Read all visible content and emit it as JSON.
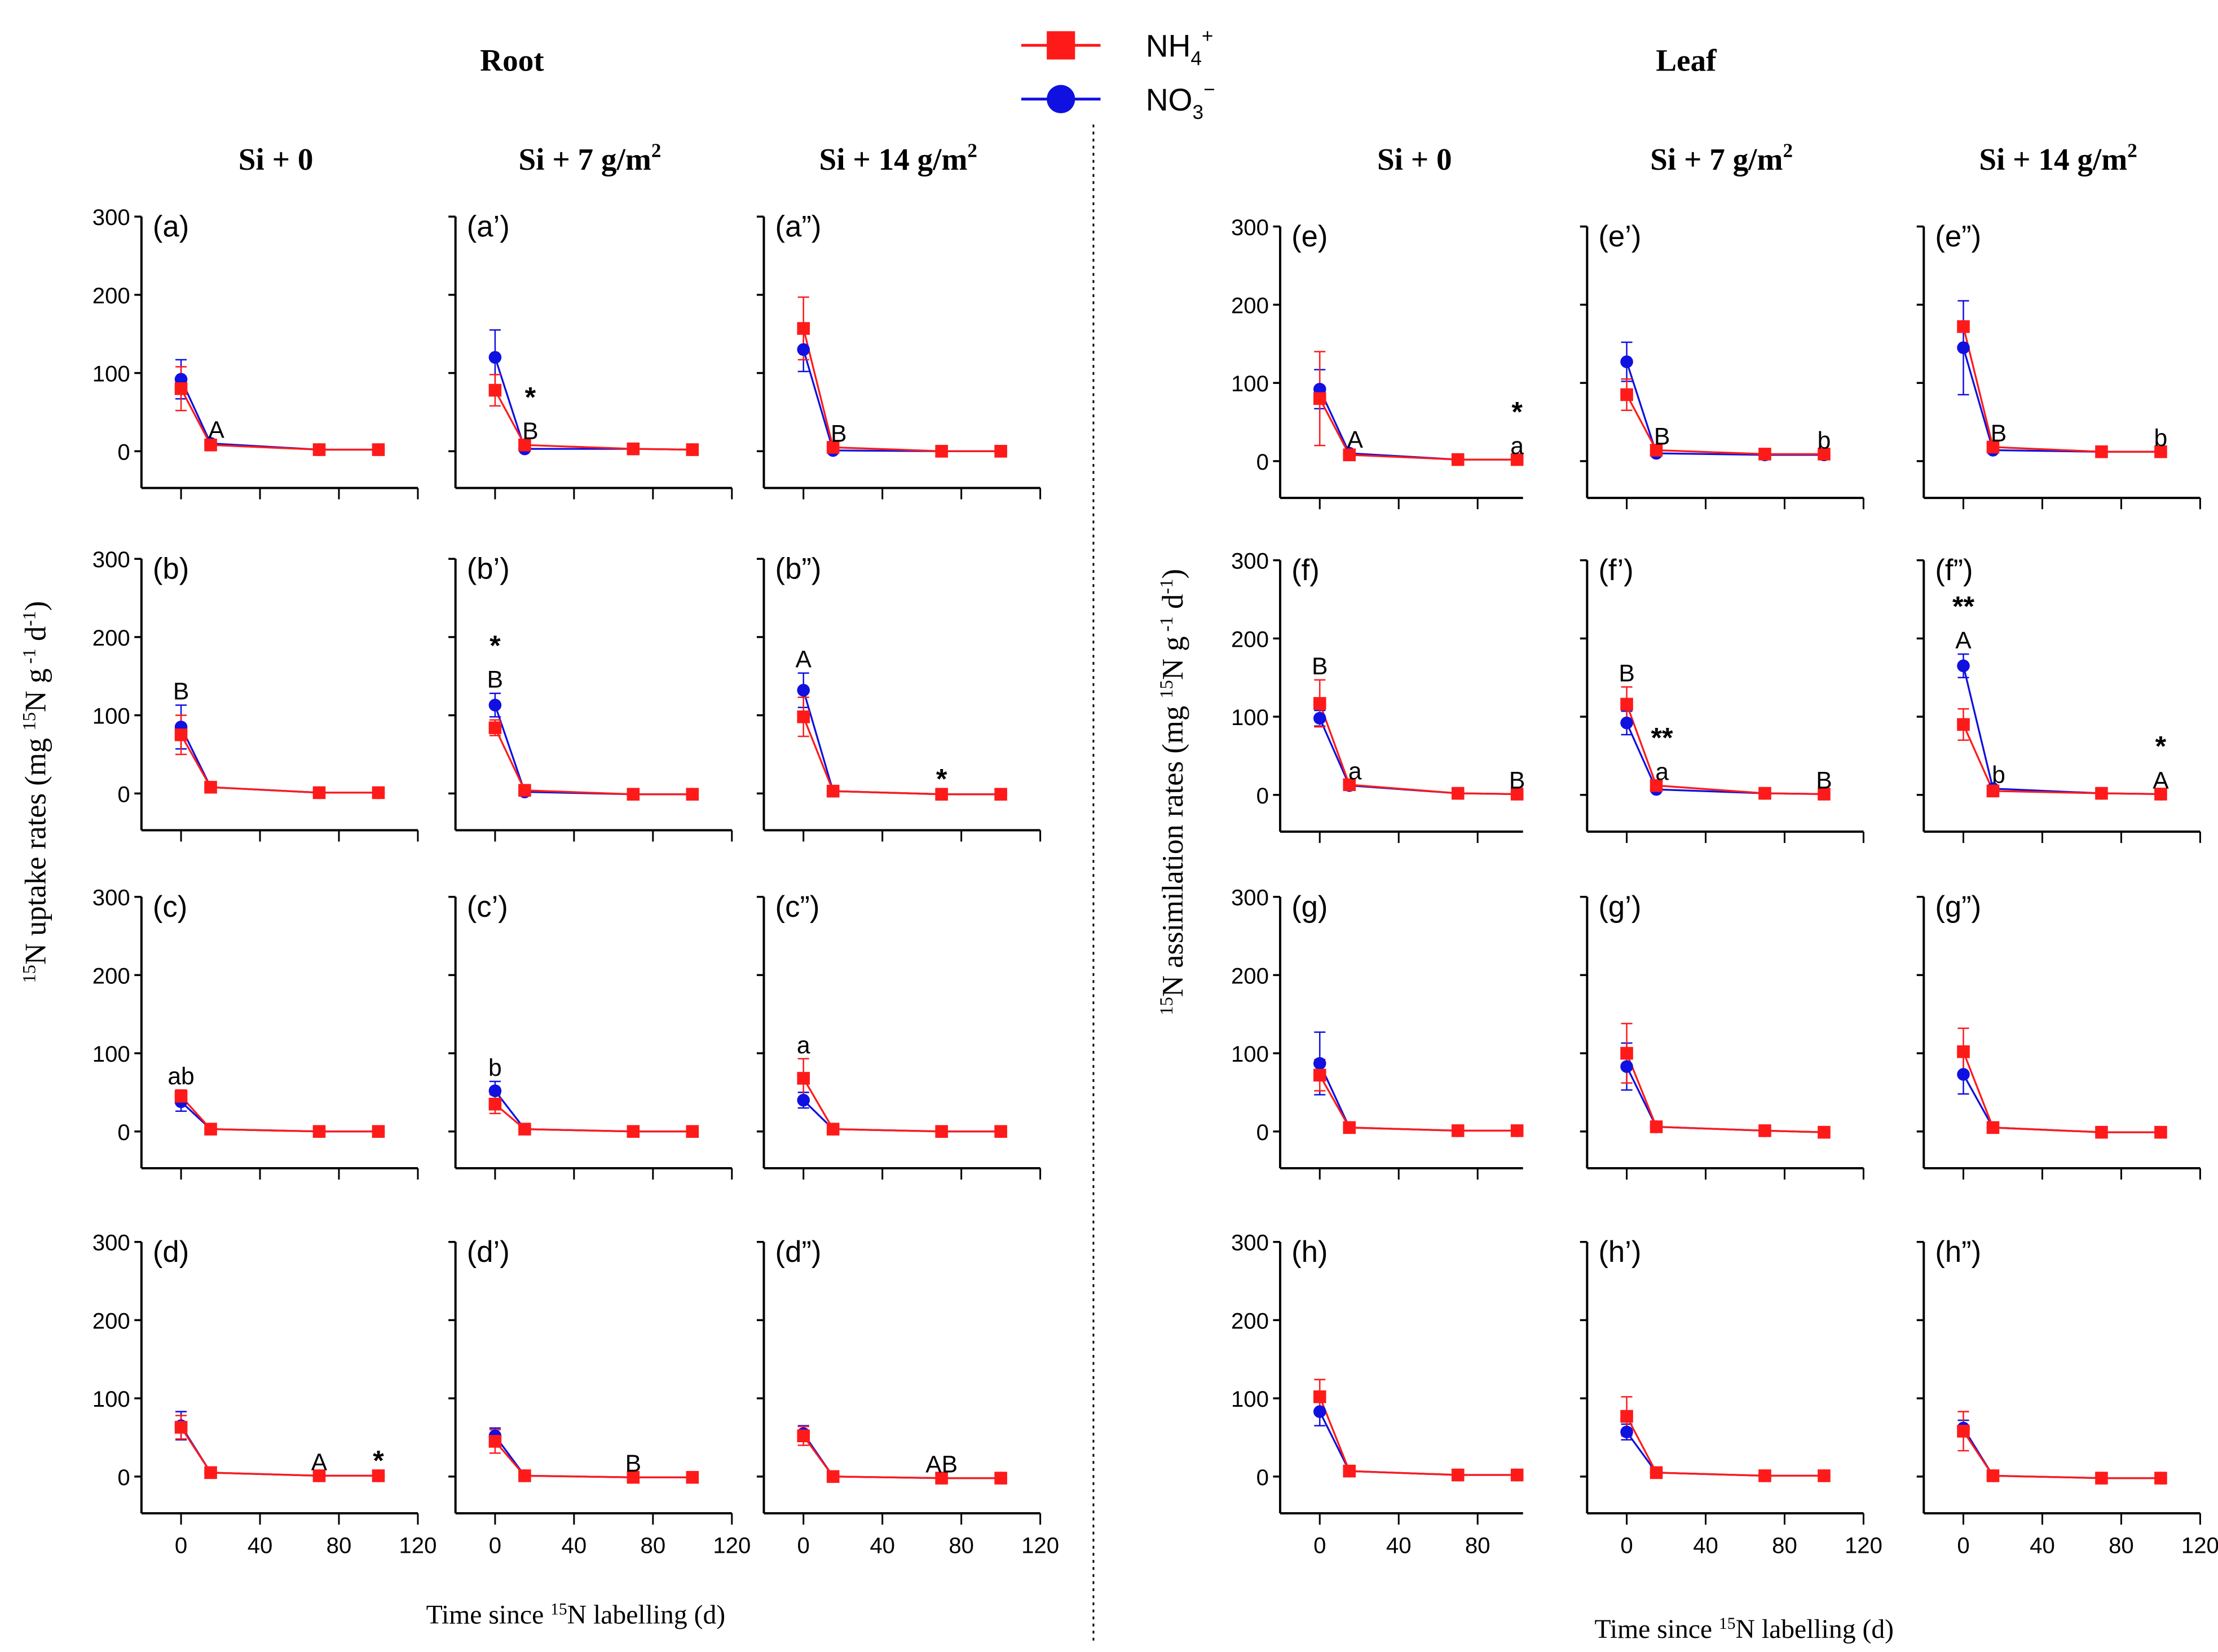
{
  "chart_data": {
    "type": "line",
    "sections": [
      {
        "title": "Root"
      },
      {
        "title": "Leaf"
      }
    ],
    "column_headers": [
      "Si + 0",
      "Si + 7 g/m",
      "Si + 14 g/m"
    ],
    "column_header_sup": [
      "",
      "2",
      "2"
    ],
    "legend": [
      {
        "name_main": "NH",
        "sub": "4",
        "sup": "+",
        "color": "#ff1a1a",
        "marker": "square"
      },
      {
        "name_main": "NO",
        "sub": "3",
        "sup": "−",
        "color": "#1010e0",
        "marker": "circle"
      }
    ],
    "ylabels": [
      [
        {
          "t": "15",
          "sup": true
        },
        {
          "t": "N uptake rates (mg "
        },
        {
          "t": "15",
          "sup": true
        },
        {
          "t": "N g"
        },
        {
          "t": " -1",
          "sup": true
        },
        {
          "t": " d"
        },
        {
          "t": "-1",
          "sup": true
        },
        {
          "t": ")"
        }
      ],
      [
        {
          "t": "15",
          "sup": true
        },
        {
          "t": "N assimilation rates (mg "
        },
        {
          "t": "15",
          "sup": true
        },
        {
          "t": "N g"
        },
        {
          "t": " -1",
          "sup": true
        },
        {
          "t": " d"
        },
        {
          "t": "-1",
          "sup": true
        },
        {
          "t": ")"
        }
      ]
    ],
    "xlabel": [
      {
        "t": "Time since "
      },
      {
        "t": "15",
        "sup": true
      },
      {
        "t": "N labelling (d)"
      }
    ],
    "x": [
      0,
      15,
      70,
      100
    ],
    "y_ticks": [
      0,
      100,
      200,
      300
    ],
    "x_ticks": [
      0,
      40,
      80,
      120
    ],
    "x_ticks_leaf_first_col": [
      0,
      40,
      80
    ],
    "ylim": [
      -50,
      300
    ],
    "panels": [
      {
        "label": "(a)",
        "no3": [
          92,
          10,
          2,
          2
        ],
        "no3_err": [
          25,
          0,
          0,
          0
        ],
        "nh4": [
          80,
          8,
          2,
          2
        ],
        "nh4_err": [
          28,
          0,
          0,
          0
        ],
        "annotations": [
          {
            "x": 15,
            "labels": [
              "A"
            ]
          }
        ]
      },
      {
        "label": "(a’)",
        "no3": [
          120,
          3,
          3,
          2
        ],
        "no3_err": [
          35,
          0,
          0,
          0
        ],
        "nh4": [
          78,
          8,
          3,
          2
        ],
        "nh4_err": [
          20,
          0,
          0,
          0
        ],
        "annotations": [
          {
            "x": 15,
            "labels": [
              "B",
              "*"
            ]
          }
        ]
      },
      {
        "label": "(a”)",
        "no3": [
          130,
          1,
          0,
          0
        ],
        "no3_err": [
          28,
          0,
          0,
          0
        ],
        "nh4": [
          157,
          5,
          0,
          0
        ],
        "nh4_err": [
          40,
          0,
          0,
          0
        ],
        "annotations": [
          {
            "x": 15,
            "labels": [
              "B"
            ]
          }
        ]
      },
      {
        "label": "(b)",
        "no3": [
          85,
          8,
          1,
          1
        ],
        "no3_err": [
          28,
          0,
          0,
          0
        ],
        "nh4": [
          75,
          8,
          1,
          1
        ],
        "nh4_err": [
          25,
          0,
          0,
          0
        ],
        "annotations": [
          {
            "x": 0,
            "labels": [
              "B"
            ]
          }
        ]
      },
      {
        "label": "(b’)",
        "no3": [
          113,
          2,
          -1,
          -1
        ],
        "no3_err": [
          15,
          0,
          0,
          0
        ],
        "nh4": [
          84,
          4,
          -1,
          -1
        ],
        "nh4_err": [
          10,
          0,
          0,
          0
        ],
        "annotations": [
          {
            "x": 0,
            "labels": [
              "B",
              "*"
            ]
          }
        ]
      },
      {
        "label": "(b”)",
        "no3": [
          132,
          3,
          -1,
          -1
        ],
        "no3_err": [
          22,
          0,
          0,
          0
        ],
        "nh4": [
          98,
          3,
          -1,
          -1
        ],
        "nh4_err": [
          25,
          0,
          0,
          0
        ],
        "annotations": [
          {
            "x": 0,
            "labels": [
              "A"
            ]
          },
          {
            "x": 70,
            "labels": [
              "*"
            ]
          }
        ]
      },
      {
        "label": "(c)",
        "no3": [
          38,
          3,
          0,
          0
        ],
        "no3_err": [
          12,
          0,
          0,
          0
        ],
        "nh4": [
          45,
          3,
          0,
          0
        ],
        "nh4_err": [
          8,
          0,
          0,
          0
        ],
        "annotations": [
          {
            "x": 0,
            "labels": [
              "ab"
            ]
          }
        ]
      },
      {
        "label": "(c’)",
        "no3": [
          52,
          3,
          0,
          0
        ],
        "no3_err": [
          12,
          0,
          0,
          0
        ],
        "nh4": [
          35,
          3,
          0,
          0
        ],
        "nh4_err": [
          12,
          0,
          0,
          0
        ],
        "annotations": [
          {
            "x": 0,
            "labels": [
              "b"
            ]
          }
        ]
      },
      {
        "label": "(c”)",
        "no3": [
          40,
          3,
          0,
          0
        ],
        "no3_err": [
          10,
          0,
          0,
          0
        ],
        "nh4": [
          68,
          3,
          0,
          0
        ],
        "nh4_err": [
          25,
          0,
          0,
          0
        ],
        "annotations": [
          {
            "x": 0,
            "labels": [
              "a"
            ]
          }
        ]
      },
      {
        "label": "(d)",
        "no3": [
          65,
          5,
          1,
          1
        ],
        "no3_err": [
          18,
          0,
          0,
          0
        ],
        "nh4": [
          63,
          5,
          1,
          1
        ],
        "nh4_err": [
          15,
          0,
          0,
          0
        ],
        "annotations": [
          {
            "x": 70,
            "labels": [
              "A"
            ]
          },
          {
            "x": 100,
            "labels": [
              "*"
            ]
          }
        ]
      },
      {
        "label": "(d’)",
        "no3": [
          52,
          1,
          -1,
          -1
        ],
        "no3_err": [
          10,
          0,
          0,
          0
        ],
        "nh4": [
          45,
          1,
          -1,
          -1
        ],
        "nh4_err": [
          15,
          0,
          0,
          0
        ],
        "annotations": [
          {
            "x": 70,
            "labels": [
              "B"
            ]
          }
        ]
      },
      {
        "label": "(d”)",
        "no3": [
          55,
          0,
          -2,
          -2
        ],
        "no3_err": [
          10,
          0,
          0,
          0
        ],
        "nh4": [
          52,
          0,
          -2,
          -2
        ],
        "nh4_err": [
          12,
          0,
          0,
          0
        ],
        "annotations": [
          {
            "x": 70,
            "labels": [
              "AB"
            ]
          }
        ]
      },
      {
        "label": "(e)",
        "no3": [
          92,
          10,
          2,
          2
        ],
        "no3_err": [
          25,
          0,
          0,
          0
        ],
        "nh4": [
          80,
          8,
          2,
          2
        ],
        "nh4_err": [
          60,
          0,
          0,
          0
        ],
        "annotations": [
          {
            "x": 15,
            "labels": [
              "A"
            ]
          },
          {
            "x": 100,
            "labels": [
              "a",
              "*"
            ]
          }
        ]
      },
      {
        "label": "(e’)",
        "no3": [
          127,
          10,
          8,
          8
        ],
        "no3_err": [
          25,
          0,
          0,
          0
        ],
        "nh4": [
          85,
          14,
          9,
          9
        ],
        "nh4_err": [
          20,
          0,
          0,
          0
        ],
        "annotations": [
          {
            "x": 15,
            "labels": [
              "B"
            ]
          },
          {
            "x": 100,
            "labels": [
              "b"
            ]
          }
        ]
      },
      {
        "label": "(e”)",
        "no3": [
          145,
          14,
          12,
          12
        ],
        "no3_err": [
          60,
          0,
          0,
          0
        ],
        "nh4": [
          172,
          18,
          12,
          12
        ],
        "nh4_err": [
          0,
          0,
          0,
          0
        ],
        "annotations": [
          {
            "x": 15,
            "labels": [
              "B"
            ]
          },
          {
            "x": 100,
            "labels": [
              "b"
            ]
          }
        ]
      },
      {
        "label": "(f)",
        "no3": [
          98,
          12,
          2,
          1
        ],
        "no3_err": [
          10,
          0,
          0,
          0
        ],
        "nh4": [
          117,
          13,
          2,
          1
        ],
        "nh4_err": [
          30,
          0,
          0,
          0
        ],
        "annotations": [
          {
            "x": 0,
            "labels": [
              "B"
            ]
          },
          {
            "x": 15,
            "labels": [
              "a"
            ]
          },
          {
            "x": 100,
            "labels": [
              "B"
            ]
          }
        ]
      },
      {
        "label": "(f’)",
        "no3": [
          92,
          7,
          2,
          1
        ],
        "no3_err": [
          15,
          0,
          0,
          0
        ],
        "nh4": [
          116,
          12,
          2,
          1
        ],
        "nh4_err": [
          22,
          0,
          0,
          0
        ],
        "annotations": [
          {
            "x": 0,
            "labels": [
              "B"
            ]
          },
          {
            "x": 15,
            "labels": [
              "a",
              "**"
            ]
          },
          {
            "x": 100,
            "labels": [
              "B"
            ]
          }
        ]
      },
      {
        "label": "(f”)",
        "no3": [
          165,
          8,
          2,
          1
        ],
        "no3_err": [
          15,
          0,
          0,
          0
        ],
        "nh4": [
          90,
          5,
          2,
          1
        ],
        "nh4_err": [
          20,
          0,
          0,
          0
        ],
        "annotations": [
          {
            "x": 0,
            "labels": [
              "A",
              "**"
            ]
          },
          {
            "x": 15,
            "labels": [
              "b"
            ]
          },
          {
            "x": 100,
            "labels": [
              "A",
              "*"
            ]
          }
        ]
      },
      {
        "label": "(g)",
        "no3": [
          87,
          5,
          1,
          1
        ],
        "no3_err": [
          40,
          0,
          0,
          0
        ],
        "nh4": [
          72,
          5,
          1,
          1
        ],
        "nh4_err": [
          20,
          0,
          0,
          0
        ],
        "annotations": []
      },
      {
        "label": "(g’)",
        "no3": [
          83,
          6,
          1,
          -1
        ],
        "no3_err": [
          30,
          0,
          0,
          0
        ],
        "nh4": [
          100,
          6,
          1,
          -1
        ],
        "nh4_err": [
          38,
          0,
          0,
          0
        ],
        "annotations": []
      },
      {
        "label": "(g”)",
        "no3": [
          73,
          5,
          -1,
          -1
        ],
        "no3_err": [
          25,
          0,
          0,
          0
        ],
        "nh4": [
          102,
          5,
          -1,
          -1
        ],
        "nh4_err": [
          30,
          0,
          0,
          0
        ],
        "annotations": []
      },
      {
        "label": "(h)",
        "no3": [
          83,
          7,
          2,
          2
        ],
        "no3_err": [
          18,
          0,
          0,
          0
        ],
        "nh4": [
          102,
          7,
          2,
          2
        ],
        "nh4_err": [
          22,
          0,
          0,
          0
        ],
        "annotations": []
      },
      {
        "label": "(h’)",
        "no3": [
          57,
          5,
          1,
          1
        ],
        "no3_err": [
          10,
          0,
          0,
          0
        ],
        "nh4": [
          77,
          5,
          1,
          1
        ],
        "nh4_err": [
          25,
          0,
          0,
          0
        ],
        "annotations": []
      },
      {
        "label": "(h”)",
        "no3": [
          62,
          1,
          -2,
          -2
        ],
        "no3_err": [
          10,
          0,
          0,
          0
        ],
        "nh4": [
          58,
          1,
          -2,
          -2
        ],
        "nh4_err": [
          25,
          0,
          0,
          0
        ],
        "annotations": []
      }
    ]
  }
}
